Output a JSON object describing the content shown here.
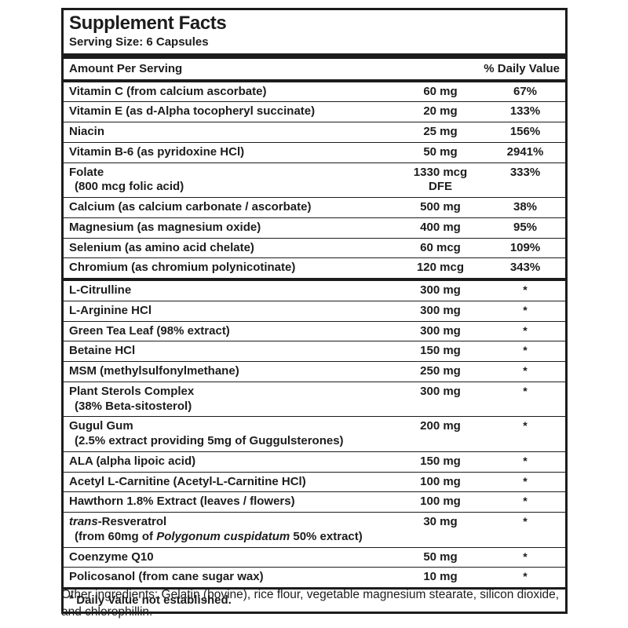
{
  "label": {
    "title": "Supplement Facts",
    "serving_size": "Serving Size: 6 Capsules",
    "header": {
      "amount": "Amount Per Serving",
      "daily_value": "% Daily Value"
    },
    "sections": [
      {
        "rows": [
          {
            "name": [
              {
                "t": "Vitamin C (from calcium ascorbate)"
              }
            ],
            "amount": "60 mg",
            "dv": "67%"
          },
          {
            "name": [
              {
                "t": "Vitamin E (as d-Alpha tocopheryl succinate)"
              }
            ],
            "amount": "20 mg",
            "dv": "133%"
          },
          {
            "name": [
              {
                "t": "Niacin"
              }
            ],
            "amount": "25 mg",
            "dv": "156%"
          },
          {
            "name": [
              {
                "t": "Vitamin B-6 (as pyridoxine HCl)"
              }
            ],
            "amount": "50 mg",
            "dv": "2941%"
          },
          {
            "name": [
              {
                "t": "Folate"
              }
            ],
            "sub": [
              {
                "t": "(800 mcg folic acid)"
              }
            ],
            "amount": "1330 mcg",
            "amount2": "DFE",
            "dv": "333%"
          },
          {
            "name": [
              {
                "t": "Calcium (as calcium carbonate / ascorbate)"
              }
            ],
            "amount": "500 mg",
            "dv": "38%"
          },
          {
            "name": [
              {
                "t": "Magnesium (as magnesium oxide)"
              }
            ],
            "amount": "400 mg",
            "dv": "95%"
          },
          {
            "name": [
              {
                "t": "Selenium (as amino acid chelate)"
              }
            ],
            "amount": "60 mcg",
            "dv": "109%"
          },
          {
            "name": [
              {
                "t": "Chromium (as chromium polynicotinate)"
              }
            ],
            "amount": "120 mcg",
            "dv": "343%"
          }
        ]
      },
      {
        "rows": [
          {
            "name": [
              {
                "t": "L-Citrulline"
              }
            ],
            "amount": "300 mg",
            "dv": "*"
          },
          {
            "name": [
              {
                "t": "L-Arginine HCl"
              }
            ],
            "amount": "300 mg",
            "dv": "*"
          },
          {
            "name": [
              {
                "t": "Green Tea Leaf (98% extract)"
              }
            ],
            "amount": "300 mg",
            "dv": "*"
          },
          {
            "name": [
              {
                "t": "Betaine HCl"
              }
            ],
            "amount": "150 mg",
            "dv": "*"
          },
          {
            "name": [
              {
                "t": "MSM (methylsulfonylmethane)"
              }
            ],
            "amount": "250 mg",
            "dv": "*"
          },
          {
            "name": [
              {
                "t": "Plant Sterols Complex"
              }
            ],
            "sub": [
              {
                "t": "(38% Beta-sitosterol)"
              }
            ],
            "amount": "300 mg",
            "dv": "*"
          },
          {
            "name": [
              {
                "t": "Gugul Gum"
              }
            ],
            "sub": [
              {
                "t": "(2.5% extract providing 5mg of Guggulsterones)"
              }
            ],
            "amount": "200 mg",
            "dv": "*"
          },
          {
            "name": [
              {
                "t": "ALA (alpha lipoic acid)"
              }
            ],
            "amount": "150 mg",
            "dv": "*"
          },
          {
            "name": [
              {
                "t": "Acetyl L-Carnitine (Acetyl-L-Carnitine HCl)"
              }
            ],
            "amount": "100 mg",
            "dv": "*"
          },
          {
            "name": [
              {
                "t": "Hawthorn 1.8% Extract (leaves / flowers)"
              }
            ],
            "amount": "100 mg",
            "dv": "*"
          },
          {
            "name": [
              {
                "t": "trans",
                "i": true
              },
              {
                "t": "-Resveratrol"
              }
            ],
            "sub": [
              {
                "t": "(from 60mg of "
              },
              {
                "t": "Polygonum cuspidatum",
                "i": true
              },
              {
                "t": " 50% extract)"
              }
            ],
            "amount": "30 mg",
            "dv": "*"
          },
          {
            "name": [
              {
                "t": "Coenzyme Q10"
              }
            ],
            "amount": "50 mg",
            "dv": "*"
          },
          {
            "name": [
              {
                "t": "Policosanol (from cane sugar wax)"
              }
            ],
            "amount": "10 mg",
            "dv": "*"
          }
        ]
      }
    ],
    "footnote_mark": "*",
    "footnote_text": "Daily Value not established.",
    "colors": {
      "ink": "#1c1c1c",
      "background": "#ffffff"
    }
  },
  "other_ingredients": "Other ingredients: Gelatin (bovine), rice flour, vegetable magnesium stearate, silicon dioxide, and chlorophillin."
}
